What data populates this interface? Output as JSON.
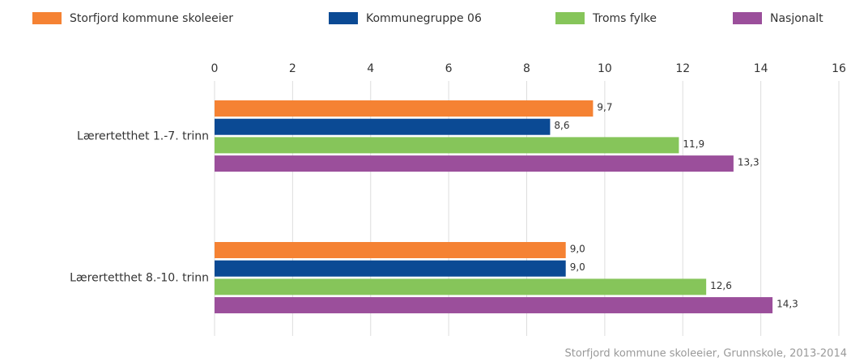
{
  "chart_data": {
    "type": "bar",
    "orientation": "horizontal",
    "categories": [
      "Lærertetthet 1.-7. trinn",
      "Lærertetthet 8.-10. trinn"
    ],
    "series": [
      {
        "name": "Storfjord kommune skoleeier",
        "color": "#f58233",
        "values": [
          9.7,
          9.0
        ],
        "value_labels": [
          "9,7",
          "9,0"
        ]
      },
      {
        "name": "Kommunegruppe 06",
        "color": "#0b4a94",
        "values": [
          8.6,
          9.0
        ],
        "value_labels": [
          "8,6",
          "9,0"
        ]
      },
      {
        "name": "Troms fylke",
        "color": "#86c55a",
        "values": [
          11.9,
          12.6
        ],
        "value_labels": [
          "11,9",
          "12,6"
        ]
      },
      {
        "name": "Nasjonalt",
        "color": "#9b4f9b",
        "values": [
          13.3,
          14.3
        ],
        "value_labels": [
          "13,3",
          "14,3"
        ]
      }
    ],
    "xlim": [
      0,
      16
    ],
    "xticks": [
      0,
      2,
      4,
      6,
      8,
      10,
      12,
      14,
      16
    ],
    "grid": true,
    "legend": "top",
    "caption": "Storfjord kommune skoleeier, Grunnskole, 2013-2014"
  }
}
